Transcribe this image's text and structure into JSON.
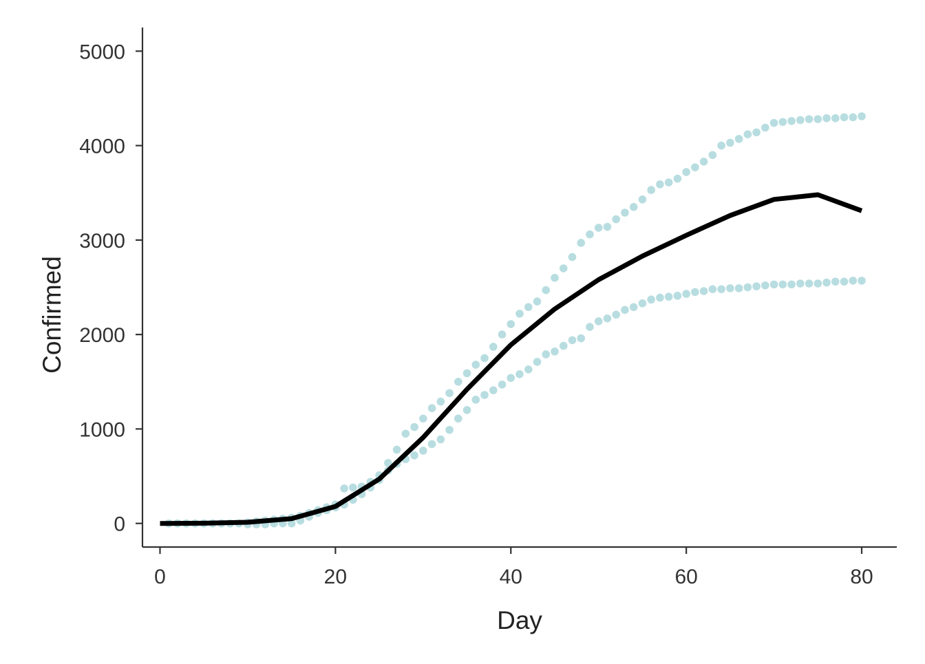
{
  "chart_data": {
    "type": "line",
    "title": "",
    "xlabel": "Day",
    "ylabel": "Confirmed",
    "xlim": [
      -2,
      84
    ],
    "ylim": [
      -250,
      5250
    ],
    "xticks": [
      0,
      20,
      40,
      60,
      80
    ],
    "yticks": [
      0,
      1000,
      2000,
      3000,
      4000,
      5000
    ],
    "xtick_labels": [
      "0",
      "20",
      "40",
      "60",
      "80"
    ],
    "ytick_labels": [
      "0",
      "1000",
      "2000",
      "3000",
      "4000",
      "5000"
    ],
    "grid": false,
    "legend": "none",
    "colors": {
      "line": "#000000",
      "band": "#b8dde0",
      "axis": "#333333"
    },
    "series": [
      {
        "style": "solid-line",
        "x": [
          0,
          5,
          10,
          15,
          20,
          25,
          30,
          35,
          40,
          45,
          50,
          55,
          60,
          65,
          70,
          75,
          80
        ],
        "y": [
          0,
          2,
          12,
          50,
          180,
          470,
          910,
          1420,
          1890,
          2270,
          2580,
          2830,
          3050,
          3260,
          3430,
          3480,
          3310
        ]
      },
      {
        "style": "dotted-points",
        "x": [
          1,
          2,
          3,
          4,
          5,
          6,
          7,
          8,
          9,
          10,
          11,
          12,
          13,
          14,
          15,
          16,
          17,
          18,
          19,
          20,
          21,
          22,
          23,
          24,
          25,
          26,
          27,
          28,
          29,
          30,
          31,
          32,
          33,
          34,
          35,
          36,
          37,
          38,
          39,
          40,
          41,
          42,
          43,
          44,
          45,
          46,
          47,
          48,
          49,
          50,
          51,
          52,
          53,
          54,
          55,
          56,
          57,
          58,
          59,
          60,
          61,
          62,
          63,
          64,
          65,
          66,
          67,
          68,
          69,
          70,
          71,
          72,
          73,
          74,
          75,
          76,
          77,
          78,
          79,
          80
        ],
        "y": [
          0,
          0,
          0,
          0,
          0,
          0,
          0,
          0,
          0,
          10,
          20,
          30,
          40,
          50,
          60,
          80,
          110,
          140,
          170,
          200,
          370,
          380,
          390,
          440,
          510,
          640,
          780,
          950,
          1020,
          1110,
          1220,
          1290,
          1380,
          1500,
          1590,
          1680,
          1750,
          1870,
          2000,
          2110,
          2220,
          2290,
          2350,
          2470,
          2600,
          2700,
          2820,
          2970,
          3060,
          3130,
          3140,
          3220,
          3290,
          3350,
          3430,
          3530,
          3590,
          3610,
          3650,
          3720,
          3770,
          3830,
          3900,
          4000,
          4030,
          4070,
          4120,
          4140,
          4190,
          4240,
          4250,
          4260,
          4270,
          4280,
          4280,
          4290,
          4290,
          4300,
          4300,
          4310
        ]
      },
      {
        "style": "dotted-points",
        "x": [
          1,
          2,
          3,
          4,
          5,
          6,
          7,
          8,
          9,
          10,
          11,
          12,
          13,
          14,
          15,
          16,
          17,
          18,
          19,
          20,
          21,
          22,
          23,
          24,
          25,
          26,
          27,
          28,
          29,
          30,
          31,
          32,
          33,
          34,
          35,
          36,
          37,
          38,
          39,
          40,
          41,
          42,
          43,
          44,
          45,
          46,
          47,
          48,
          49,
          50,
          51,
          52,
          53,
          54,
          55,
          56,
          57,
          58,
          59,
          60,
          61,
          62,
          63,
          64,
          65,
          66,
          67,
          68,
          69,
          70,
          71,
          72,
          73,
          74,
          75,
          76,
          77,
          78,
          79,
          80
        ],
        "y": [
          0,
          0,
          0,
          0,
          0,
          0,
          0,
          0,
          0,
          -10,
          -10,
          -10,
          0,
          0,
          0,
          30,
          70,
          110,
          140,
          170,
          200,
          250,
          310,
          380,
          460,
          560,
          630,
          680,
          720,
          770,
          840,
          890,
          990,
          1110,
          1200,
          1310,
          1360,
          1410,
          1470,
          1540,
          1580,
          1630,
          1710,
          1790,
          1820,
          1880,
          1940,
          1960,
          2080,
          2140,
          2170,
          2210,
          2260,
          2290,
          2330,
          2370,
          2390,
          2400,
          2410,
          2430,
          2450,
          2460,
          2480,
          2480,
          2490,
          2490,
          2500,
          2510,
          2520,
          2530,
          2530,
          2530,
          2540,
          2540,
          2540,
          2550,
          2560,
          2560,
          2570,
          2570
        ]
      }
    ]
  }
}
